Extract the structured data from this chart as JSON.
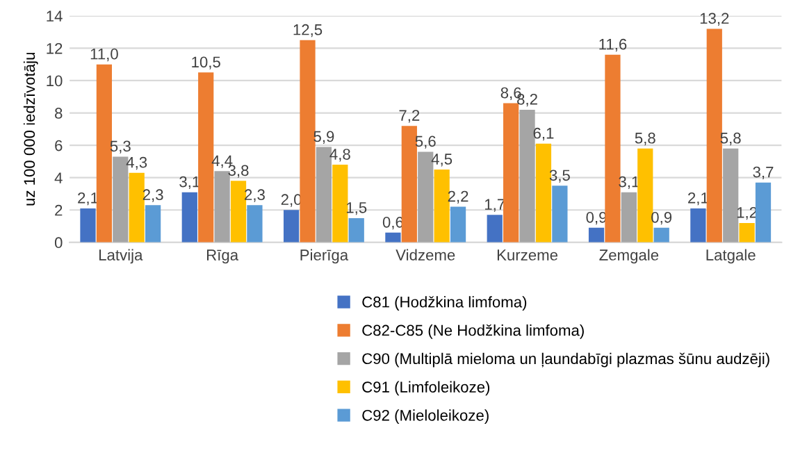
{
  "chart_data": {
    "type": "bar",
    "ylabel": "uz 100 000 iedzīvotāju",
    "categories": [
      "Latvija",
      "Rīga",
      "Pierīga",
      "Vidzeme",
      "Kurzeme",
      "Zemgale",
      "Latgale"
    ],
    "series": [
      {
        "name": "C81 (Hodžkina limfoma)",
        "color": "#4472c4",
        "values": [
          2.1,
          3.1,
          2.0,
          0.6,
          1.7,
          0.9,
          2.1
        ],
        "value_labels": [
          "2,1",
          "3,1",
          "2,0",
          "0,6",
          "1,7",
          "0,9",
          "2,1"
        ]
      },
      {
        "name": "C82-C85 (Ne Hodžkina limfoma)",
        "color": "#ed7d31",
        "values": [
          11.0,
          10.5,
          12.5,
          7.2,
          8.6,
          11.6,
          13.2
        ],
        "value_labels": [
          "11,0",
          "10,5",
          "12,5",
          "7,2",
          "8,6",
          "11,6",
          "13,2"
        ]
      },
      {
        "name": "C90 (Multiplā mieloma un ļaundabīgi plazmas šūnu audzēji)",
        "color": "#a5a5a5",
        "values": [
          5.3,
          4.4,
          5.9,
          5.6,
          8.2,
          3.1,
          5.8
        ],
        "value_labels": [
          "5,3",
          "4,4",
          "5,9",
          "5,6",
          "8,2",
          "3,1",
          "5,8"
        ]
      },
      {
        "name": "C91 (Limfoleikoze)",
        "color": "#ffc000",
        "values": [
          4.3,
          3.8,
          4.8,
          4.5,
          6.1,
          5.8,
          1.2
        ],
        "value_labels": [
          "4,3",
          "3,8",
          "4,8",
          "4,5",
          "6,1",
          "5,8",
          "1,2"
        ]
      },
      {
        "name": "C92 (Mieloleikoze)",
        "color": "#5b9bd5",
        "values": [
          2.3,
          2.3,
          1.5,
          2.2,
          3.5,
          0.9,
          3.7
        ],
        "value_labels": [
          "2,3",
          "2,3",
          "1,5",
          "2,2",
          "3,5",
          "0,9",
          "3,7"
        ]
      }
    ],
    "ylim": [
      0,
      14
    ],
    "yticks": [
      0,
      2,
      4,
      6,
      8,
      10,
      12,
      14
    ],
    "grid": "y",
    "legend": "bottom"
  }
}
